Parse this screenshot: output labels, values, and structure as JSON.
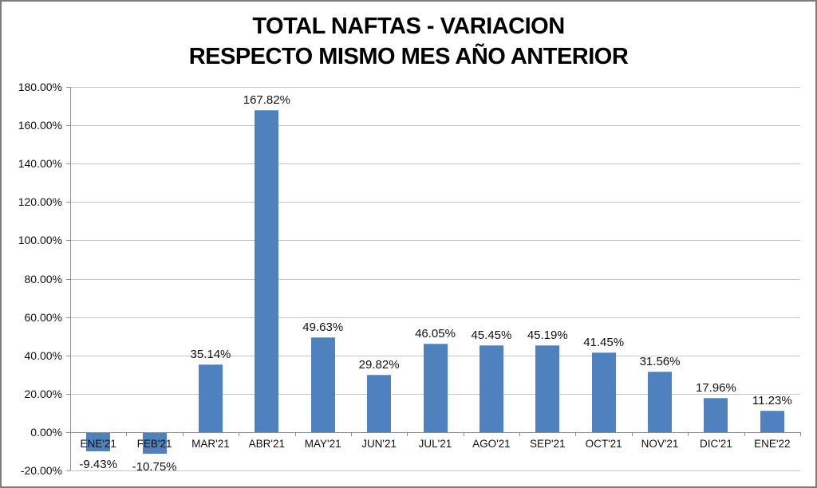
{
  "frame": {
    "background": "#FFFFFF",
    "border_color": "#7D7D7D"
  },
  "chart_data": {
    "type": "bar",
    "title": "TOTAL NAFTAS - VARIACION",
    "subtitle": "RESPECTO MISMO MES AÑO ANTERIOR",
    "categories": [
      "ENE'21",
      "FEB'21",
      "MAR'21",
      "ABR'21",
      "MAY'21",
      "JUN'21",
      "JUL'21",
      "AGO'21",
      "SEP'21",
      "OCT'21",
      "NOV'21",
      "DIC'21",
      "ENE'22"
    ],
    "values": [
      -9.43,
      -10.75,
      35.14,
      167.82,
      49.63,
      29.82,
      46.05,
      45.45,
      45.19,
      41.45,
      31.56,
      17.96,
      11.23
    ],
    "data_labels": [
      "-9.43%",
      "-10.75%",
      "35.14%",
      "167.82%",
      "49.63%",
      "29.82%",
      "46.05%",
      "45.45%",
      "45.19%",
      "41.45%",
      "31.56%",
      "17.96%",
      "11.23%"
    ],
    "y_tick_labels": [
      "180.00%",
      "160.00%",
      "140.00%",
      "120.00%",
      "100.00%",
      "80.00%",
      "60.00%",
      "40.00%",
      "20.00%",
      "0.00%",
      "-20.00%"
    ],
    "y_tick_values": [
      180,
      160,
      140,
      120,
      100,
      80,
      60,
      40,
      20,
      0,
      -20
    ],
    "ylim": [
      -20,
      180
    ],
    "xlabel": "",
    "ylabel": "",
    "grid": true,
    "legend": "none",
    "bar_color": "#4E81BD",
    "gridline_color": "#C6C6C6",
    "axis_color": "#8E8E8E",
    "label_color": "#111111"
  }
}
